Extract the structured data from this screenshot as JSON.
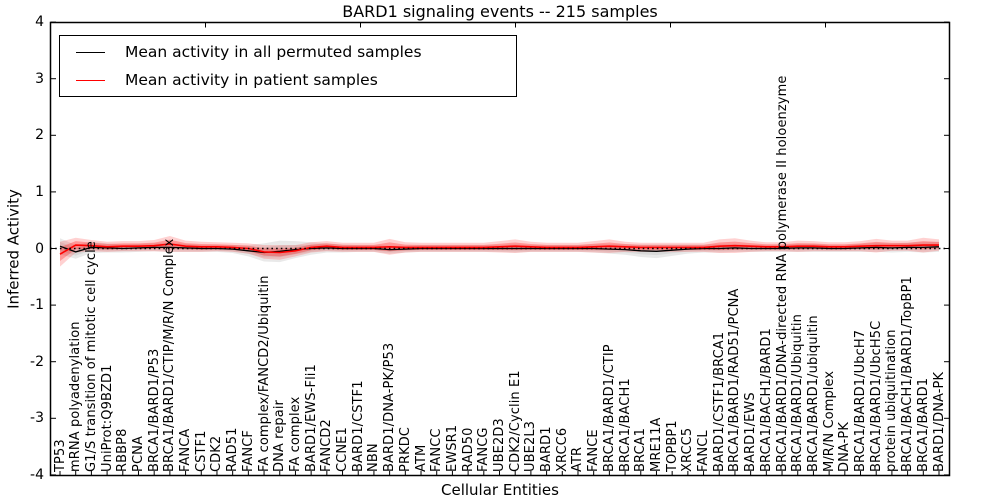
{
  "chart_data": {
    "type": "line",
    "title": "BARD1 signaling events -- 215 samples",
    "xlabel": "Cellular Entities",
    "ylabel": "Inferred Activity",
    "ylim": [
      -4,
      4
    ],
    "yticks": [
      "4",
      "3",
      "2",
      "1",
      "0",
      "-1",
      "-2",
      "-3",
      "-4"
    ],
    "ytick_values": [
      4,
      3,
      2,
      1,
      0,
      -1,
      -2,
      -3,
      -4
    ],
    "grid": false,
    "legend_position": "upper left",
    "zero_line_style": "dotted",
    "categories": [
      "TP53",
      "mRNA polyadenylation",
      "G1/S transition of mitotic cell cycle",
      "UniProt:Q9BZD1",
      "RBBP8",
      "PCNA",
      "BRCA1/BARD1/P53",
      "BRCA1/BARD1/CTIP/M/R/N Complex",
      "FANCA",
      "CSTF1",
      "CDK2",
      "RAD51",
      "FANCF",
      "FA complex/FANCD2/Ubiquitin",
      "DNA repair",
      "FA complex",
      "BARD1/EWS-Fli1",
      "FANCD2",
      "CCNE1",
      "BARD1/CSTF1",
      "NBN",
      "BARD1/DNA-PK/P53",
      "PRKDC",
      "ATM",
      "FANCC",
      "EWSR1",
      "RAD50",
      "FANCG",
      "UBE2D3",
      "CDK2/Cyclin E1",
      "UBE2L3",
      "BARD1",
      "XRCC6",
      "ATR",
      "FANCE",
      "BRCA1/BARD1/CTIP",
      "BRCA1/BACH1",
      "BRCA1",
      "MRE11A",
      "TOPBP1",
      "XRCC5",
      "FANCL",
      "BARD1/CSTF1/BRCA1",
      "BRCA1/BARD1/RAD51/PCNA",
      "BARD1/EWS",
      "BRCA1/BACH1/BARD1",
      "BRCA1/BARD1/DNA-directed RNA polymerase II holoenzyme",
      "BRCA1/BARD1/Ubiquitin",
      "BRCA1/BARD1/ubiquitin",
      "M/R/N Complex",
      "DNA-PK",
      "BRCA1/BARD1/UbcH7",
      "BRCA1/BARD1/UbcH5C",
      "protein ubiquitination",
      "BRCA1/BACH1/BARD1/TopBP1",
      "BRCA1/BARD1",
      "BARD1/DNA-PK"
    ],
    "series": [
      {
        "name": "Mean activity in all permuted samples",
        "color": "#000000",
        "band_color": "#999999",
        "values": [
          0.04,
          -0.06,
          0.02,
          0.01,
          0.0,
          0.01,
          0.02,
          0.02,
          0.01,
          0.0,
          0.0,
          -0.01,
          -0.04,
          -0.07,
          -0.05,
          -0.02,
          0.0,
          0.01,
          0.0,
          0.0,
          0.0,
          -0.02,
          -0.01,
          0.0,
          0.0,
          0.0,
          0.0,
          0.0,
          0.0,
          0.0,
          0.0,
          0.0,
          0.0,
          0.0,
          0.0,
          -0.01,
          -0.02,
          -0.04,
          -0.05,
          -0.03,
          -0.01,
          0.0,
          0.0,
          0.01,
          0.0,
          0.0,
          0.0,
          0.01,
          0.01,
          0.0,
          0.0,
          0.01,
          0.02,
          0.01,
          0.02,
          0.02,
          0.03
        ],
        "band_halfwidth": [
          0.14,
          0.12,
          0.1,
          0.08,
          0.07,
          0.07,
          0.07,
          0.08,
          0.07,
          0.06,
          0.06,
          0.07,
          0.1,
          0.16,
          0.19,
          0.15,
          0.11,
          0.08,
          0.07,
          0.06,
          0.06,
          0.07,
          0.06,
          0.06,
          0.06,
          0.06,
          0.06,
          0.06,
          0.06,
          0.07,
          0.06,
          0.06,
          0.06,
          0.06,
          0.07,
          0.08,
          0.09,
          0.11,
          0.12,
          0.1,
          0.08,
          0.07,
          0.07,
          0.07,
          0.06,
          0.06,
          0.06,
          0.07,
          0.07,
          0.06,
          0.06,
          0.07,
          0.08,
          0.08,
          0.08,
          0.09,
          0.09
        ]
      },
      {
        "name": "Mean activity in patient samples",
        "color": "#ff0000",
        "band_color": "#ff0000",
        "values": [
          -0.1,
          0.06,
          0.05,
          0.03,
          0.04,
          0.04,
          0.05,
          0.08,
          0.04,
          0.03,
          0.03,
          0.02,
          0.0,
          -0.06,
          -0.07,
          -0.04,
          0.02,
          0.04,
          0.02,
          0.02,
          0.02,
          0.03,
          0.02,
          0.02,
          0.02,
          0.02,
          0.02,
          0.02,
          0.03,
          0.04,
          0.03,
          0.02,
          0.02,
          0.02,
          0.03,
          0.04,
          0.03,
          0.02,
          0.02,
          0.02,
          0.02,
          0.02,
          0.04,
          0.05,
          0.04,
          0.03,
          0.03,
          0.04,
          0.04,
          0.03,
          0.03,
          0.04,
          0.05,
          0.05,
          0.05,
          0.06,
          0.06
        ],
        "band_halfwidth": [
          0.22,
          0.13,
          0.1,
          0.09,
          0.09,
          0.09,
          0.1,
          0.14,
          0.1,
          0.09,
          0.08,
          0.08,
          0.09,
          0.12,
          0.13,
          0.1,
          0.09,
          0.09,
          0.08,
          0.08,
          0.08,
          0.14,
          0.09,
          0.08,
          0.08,
          0.08,
          0.08,
          0.08,
          0.1,
          0.12,
          0.09,
          0.08,
          0.08,
          0.08,
          0.1,
          0.12,
          0.09,
          0.08,
          0.08,
          0.08,
          0.08,
          0.08,
          0.12,
          0.13,
          0.1,
          0.08,
          0.08,
          0.1,
          0.09,
          0.08,
          0.08,
          0.09,
          0.12,
          0.09,
          0.09,
          0.13,
          0.1
        ]
      }
    ]
  }
}
